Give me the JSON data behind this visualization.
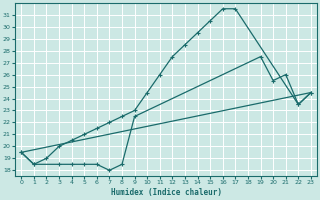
{
  "xlabel": "Humidex (Indice chaleur)",
  "bg_color": "#cce8e4",
  "grid_color": "#aaaaaa",
  "line_color": "#1a6b6b",
  "xlim": [
    -0.5,
    23.5
  ],
  "ylim": [
    17.5,
    32.0
  ],
  "xticks": [
    0,
    1,
    2,
    3,
    4,
    5,
    6,
    7,
    8,
    9,
    10,
    11,
    12,
    13,
    14,
    15,
    16,
    17,
    18,
    19,
    20,
    21,
    22,
    23
  ],
  "yticks": [
    18,
    19,
    20,
    21,
    22,
    23,
    24,
    25,
    26,
    27,
    28,
    29,
    30,
    31
  ],
  "curve1_x": [
    0,
    1,
    2,
    3,
    4,
    5,
    6,
    7,
    8,
    9,
    10,
    11,
    12,
    13,
    14,
    15,
    16,
    17,
    22,
    23
  ],
  "curve1_y": [
    19.5,
    18.5,
    19.0,
    20.0,
    20.5,
    21.0,
    21.5,
    22.0,
    22.5,
    23.0,
    24.5,
    26.0,
    27.5,
    28.5,
    29.5,
    30.5,
    31.5,
    31.5,
    23.5,
    24.5
  ],
  "curve2_x": [
    0,
    1,
    3,
    4,
    5,
    6,
    7,
    8,
    9,
    19,
    20,
    21,
    22,
    23
  ],
  "curve2_y": [
    19.5,
    18.5,
    18.5,
    18.5,
    18.5,
    18.5,
    18.0,
    18.5,
    22.5,
    27.5,
    25.5,
    26.0,
    23.5,
    24.5
  ],
  "curve3_x": [
    0,
    23
  ],
  "curve3_y": [
    19.5,
    24.5
  ]
}
